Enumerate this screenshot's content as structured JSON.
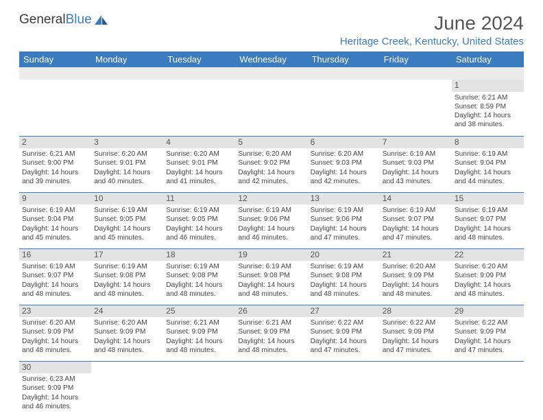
{
  "brand": {
    "part1": "General",
    "part2": "Blue"
  },
  "header": {
    "month_year": "June 2024",
    "location": "Heritage Creek, Kentucky, United States"
  },
  "day_labels": [
    "Sunday",
    "Monday",
    "Tuesday",
    "Wednesday",
    "Thursday",
    "Friday",
    "Saturday"
  ],
  "colors": {
    "accent": "#3b7bbf",
    "header_bg": "#3b7bbf",
    "daynum_bg": "#e3e3e3",
    "blank_bg": "#ececec"
  },
  "weeks": [
    [
      null,
      null,
      null,
      null,
      null,
      null,
      {
        "n": "1",
        "sr": "6:21 AM",
        "ss": "8:59 PM",
        "dl": "14 hours and 38 minutes."
      }
    ],
    [
      {
        "n": "2",
        "sr": "6:21 AM",
        "ss": "9:00 PM",
        "dl": "14 hours and 39 minutes."
      },
      {
        "n": "3",
        "sr": "6:20 AM",
        "ss": "9:01 PM",
        "dl": "14 hours and 40 minutes."
      },
      {
        "n": "4",
        "sr": "6:20 AM",
        "ss": "9:01 PM",
        "dl": "14 hours and 41 minutes."
      },
      {
        "n": "5",
        "sr": "6:20 AM",
        "ss": "9:02 PM",
        "dl": "14 hours and 42 minutes."
      },
      {
        "n": "6",
        "sr": "6:20 AM",
        "ss": "9:03 PM",
        "dl": "14 hours and 42 minutes."
      },
      {
        "n": "7",
        "sr": "6:19 AM",
        "ss": "9:03 PM",
        "dl": "14 hours and 43 minutes."
      },
      {
        "n": "8",
        "sr": "6:19 AM",
        "ss": "9:04 PM",
        "dl": "14 hours and 44 minutes."
      }
    ],
    [
      {
        "n": "9",
        "sr": "6:19 AM",
        "ss": "9:04 PM",
        "dl": "14 hours and 45 minutes."
      },
      {
        "n": "10",
        "sr": "6:19 AM",
        "ss": "9:05 PM",
        "dl": "14 hours and 45 minutes."
      },
      {
        "n": "11",
        "sr": "6:19 AM",
        "ss": "9:05 PM",
        "dl": "14 hours and 46 minutes."
      },
      {
        "n": "12",
        "sr": "6:19 AM",
        "ss": "9:06 PM",
        "dl": "14 hours and 46 minutes."
      },
      {
        "n": "13",
        "sr": "6:19 AM",
        "ss": "9:06 PM",
        "dl": "14 hours and 47 minutes."
      },
      {
        "n": "14",
        "sr": "6:19 AM",
        "ss": "9:07 PM",
        "dl": "14 hours and 47 minutes."
      },
      {
        "n": "15",
        "sr": "6:19 AM",
        "ss": "9:07 PM",
        "dl": "14 hours and 48 minutes."
      }
    ],
    [
      {
        "n": "16",
        "sr": "6:19 AM",
        "ss": "9:07 PM",
        "dl": "14 hours and 48 minutes."
      },
      {
        "n": "17",
        "sr": "6:19 AM",
        "ss": "9:08 PM",
        "dl": "14 hours and 48 minutes."
      },
      {
        "n": "18",
        "sr": "6:19 AM",
        "ss": "9:08 PM",
        "dl": "14 hours and 48 minutes."
      },
      {
        "n": "19",
        "sr": "6:19 AM",
        "ss": "9:08 PM",
        "dl": "14 hours and 48 minutes."
      },
      {
        "n": "20",
        "sr": "6:19 AM",
        "ss": "9:08 PM",
        "dl": "14 hours and 48 minutes."
      },
      {
        "n": "21",
        "sr": "6:20 AM",
        "ss": "9:09 PM",
        "dl": "14 hours and 48 minutes."
      },
      {
        "n": "22",
        "sr": "6:20 AM",
        "ss": "9:09 PM",
        "dl": "14 hours and 48 minutes."
      }
    ],
    [
      {
        "n": "23",
        "sr": "6:20 AM",
        "ss": "9:09 PM",
        "dl": "14 hours and 48 minutes."
      },
      {
        "n": "24",
        "sr": "6:20 AM",
        "ss": "9:09 PM",
        "dl": "14 hours and 48 minutes."
      },
      {
        "n": "25",
        "sr": "6:21 AM",
        "ss": "9:09 PM",
        "dl": "14 hours and 48 minutes."
      },
      {
        "n": "26",
        "sr": "6:21 AM",
        "ss": "9:09 PM",
        "dl": "14 hours and 48 minutes."
      },
      {
        "n": "27",
        "sr": "6:22 AM",
        "ss": "9:09 PM",
        "dl": "14 hours and 47 minutes."
      },
      {
        "n": "28",
        "sr": "6:22 AM",
        "ss": "9:09 PM",
        "dl": "14 hours and 47 minutes."
      },
      {
        "n": "29",
        "sr": "6:22 AM",
        "ss": "9:09 PM",
        "dl": "14 hours and 47 minutes."
      }
    ],
    [
      {
        "n": "30",
        "sr": "6:23 AM",
        "ss": "9:09 PM",
        "dl": "14 hours and 46 minutes."
      },
      null,
      null,
      null,
      null,
      null,
      null
    ]
  ],
  "labels": {
    "sunrise": "Sunrise: ",
    "sunset": "Sunset: ",
    "daylight": "Daylight: "
  }
}
